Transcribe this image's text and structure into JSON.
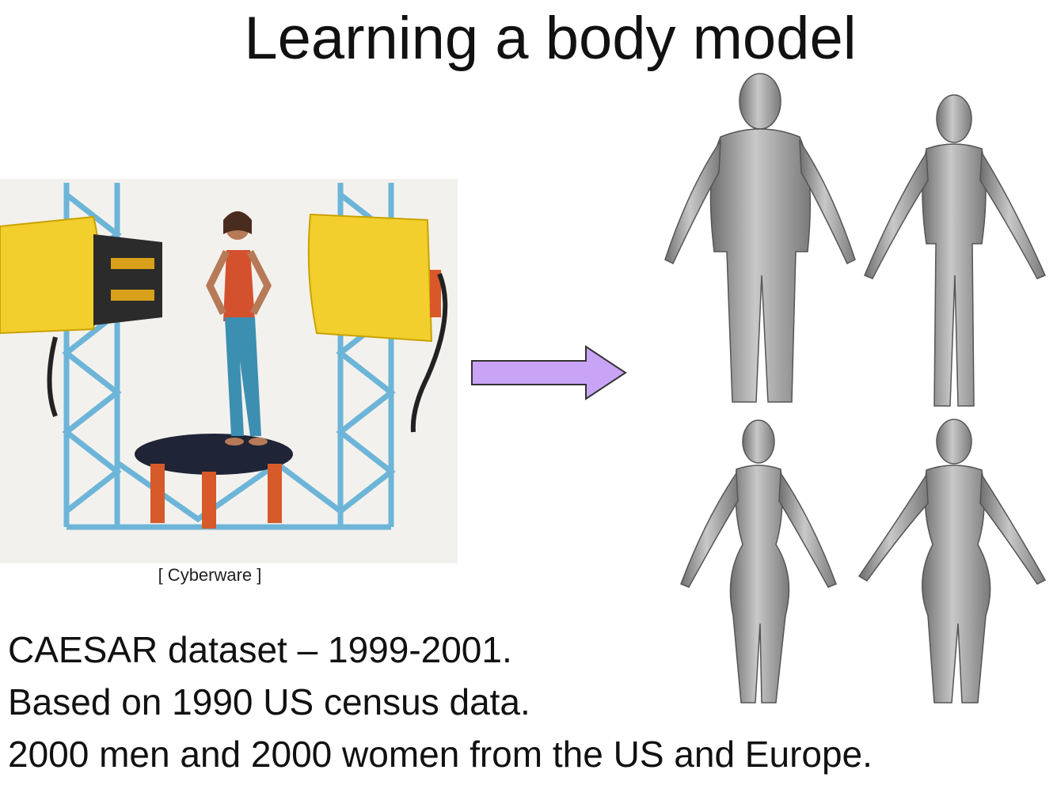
{
  "slide": {
    "title": "Learning a body model",
    "photo_caption": "[ Cyberware ]",
    "lines": [
      "CAESAR dataset – 1999-2001.",
      "Based on 1990 US census data.",
      "2000 men and 2000 women from the US and Europe."
    ]
  },
  "colors": {
    "arrow_fill": "#c9a4f6",
    "arrow_stroke": "#333333",
    "scanner_yellow": "#f2cf2c",
    "frame_blue": "#6db5d8",
    "mesh_gray": "#9a9a9a"
  },
  "icons": [
    "right-arrow-icon"
  ]
}
